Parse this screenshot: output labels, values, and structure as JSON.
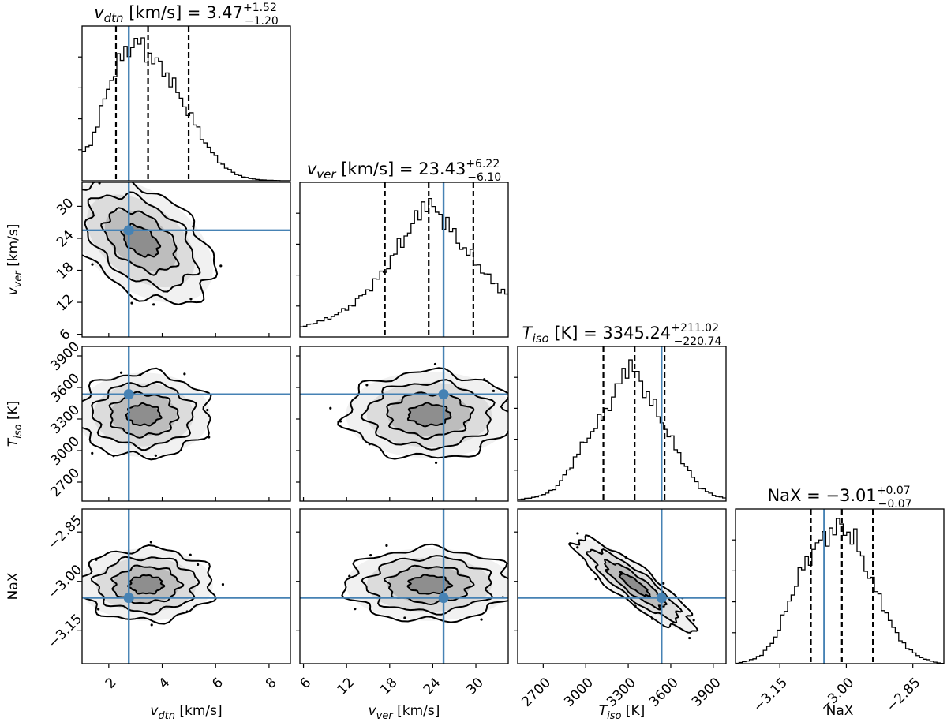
{
  "chart_data": {
    "type": "corner",
    "parameters": [
      {
        "key": "vdtn",
        "symbol": "v",
        "sub": "dtn",
        "unit": "[km/s]",
        "range": [
          1.0,
          8.8
        ],
        "ticks": [
          2,
          4,
          6,
          8
        ],
        "tick_labels": [
          "2",
          "4",
          "6",
          "8"
        ]
      },
      {
        "key": "vver",
        "symbol": "v",
        "sub": "ver",
        "unit": "[km/s]",
        "range": [
          5.5,
          34.5
        ],
        "ticks": [
          6,
          12,
          18,
          24,
          30
        ],
        "tick_labels": [
          "6",
          "12",
          "18",
          "24",
          "30"
        ]
      },
      {
        "key": "Tiso",
        "symbol": "T",
        "sub": "iso",
        "unit": "[K]",
        "range": [
          2520,
          3990
        ],
        "ticks": [
          2700,
          3000,
          3300,
          3600,
          3900
        ],
        "tick_labels": [
          "2700",
          "3000",
          "3300",
          "3600",
          "3900"
        ]
      },
      {
        "key": "NaX",
        "symbol": "NaX",
        "sub": "",
        "unit": "",
        "range": [
          -3.25,
          -2.78
        ],
        "ticks": [
          -3.15,
          -3.0,
          -2.85
        ],
        "tick_labels": [
          "−3.15",
          "−3.00",
          "−2.85"
        ]
      }
    ],
    "titles": [
      {
        "param": "vdtn",
        "lhs": "v",
        "sub": "dtn",
        "unit": " [km/s] = ",
        "median": "3.47",
        "plus": "+1.52",
        "minus": "−1.20"
      },
      {
        "param": "vver",
        "lhs": "v",
        "sub": "ver",
        "unit": " [km/s] = ",
        "median": "23.43",
        "plus": "+6.22",
        "minus": "−6.10"
      },
      {
        "param": "Tiso",
        "lhs": "T",
        "sub": "iso",
        "unit": " [K] = ",
        "median": "3345.24",
        "plus": "+211.02",
        "minus": "−220.74"
      },
      {
        "param": "NaX",
        "lhs": "NaX",
        "sub": "",
        "unit": " = ",
        "median": "−3.01",
        "plus": "+0.07",
        "minus": "−0.07"
      }
    ],
    "medians": [
      3.47,
      23.43,
      3345.24,
      -3.01
    ],
    "quantiles_16_84": [
      [
        2.27,
        4.99
      ],
      [
        17.33,
        29.65
      ],
      [
        3124.5,
        3556.26
      ],
      [
        -3.08,
        -2.94
      ]
    ],
    "truths": [
      2.75,
      25.5,
      3535,
      -3.05
    ],
    "marginals": [
      {
        "param": "vdtn",
        "x": [
          1.0,
          1.3,
          1.6,
          1.9,
          2.2,
          2.5,
          2.8,
          3.1,
          3.4,
          3.7,
          4.0,
          4.3,
          4.6,
          4.9,
          5.2,
          5.5,
          5.8,
          6.1,
          6.4,
          6.7,
          7.0,
          7.3,
          7.6,
          7.9,
          8.2,
          8.5
        ],
        "density": [
          0.18,
          0.25,
          0.4,
          0.6,
          0.75,
          0.85,
          0.93,
          0.95,
          0.9,
          0.82,
          0.78,
          0.7,
          0.6,
          0.5,
          0.4,
          0.3,
          0.21,
          0.14,
          0.09,
          0.05,
          0.03,
          0.015,
          0.008,
          0.004,
          0.002,
          0.0
        ]
      },
      {
        "param": "vver",
        "x": [
          5.5,
          7.0,
          8.5,
          10.0,
          11.5,
          13.0,
          14.5,
          16.0,
          17.5,
          19.0,
          20.5,
          22.0,
          23.0,
          24.0,
          25.5,
          27.0,
          28.5,
          30.0,
          31.5,
          33.0,
          34.5
        ],
        "density": [
          0.06,
          0.09,
          0.11,
          0.14,
          0.18,
          0.23,
          0.3,
          0.38,
          0.47,
          0.6,
          0.72,
          0.83,
          0.95,
          0.88,
          0.82,
          0.7,
          0.6,
          0.52,
          0.42,
          0.35,
          0.28
        ]
      },
      {
        "param": "Tiso",
        "x": [
          2520,
          2600,
          2700,
          2800,
          2900,
          3000,
          3100,
          3200,
          3300,
          3350,
          3400,
          3500,
          3600,
          3700,
          3800,
          3900,
          3990
        ],
        "density": [
          0.01,
          0.02,
          0.04,
          0.1,
          0.25,
          0.42,
          0.55,
          0.72,
          0.96,
          0.88,
          0.8,
          0.62,
          0.43,
          0.25,
          0.1,
          0.04,
          0.02
        ]
      },
      {
        "param": "NaX",
        "x": [
          -3.25,
          -3.22,
          -3.19,
          -3.16,
          -3.13,
          -3.1,
          -3.07,
          -3.04,
          -3.01,
          -2.98,
          -2.95,
          -2.92,
          -2.89,
          -2.86,
          -2.83,
          -2.8,
          -2.78
        ],
        "density": [
          0.0,
          0.02,
          0.06,
          0.18,
          0.42,
          0.65,
          0.8,
          0.9,
          0.95,
          0.85,
          0.62,
          0.42,
          0.22,
          0.1,
          0.04,
          0.01,
          0.0
        ]
      }
    ],
    "joint_contours": [
      {
        "x": "vdtn",
        "y": "vver",
        "center": [
          3.2,
          23.5
        ],
        "sigma": [
          1.35,
          5.8
        ],
        "rho": -0.45
      },
      {
        "x": "vdtn",
        "y": "Tiso",
        "center": [
          3.3,
          3340
        ],
        "sigma": [
          1.25,
          200
        ],
        "rho": 0.0
      },
      {
        "x": "vver",
        "y": "Tiso",
        "center": [
          23.5,
          3340
        ],
        "sigma": [
          5.8,
          205
        ],
        "rho": 0.0
      },
      {
        "x": "vdtn",
        "y": "NaX",
        "center": [
          3.4,
          -3.01
        ],
        "sigma": [
          1.25,
          0.055
        ],
        "rho": 0.0
      },
      {
        "x": "vver",
        "y": "NaX",
        "center": [
          23.5,
          -3.01
        ],
        "sigma": [
          5.8,
          0.055
        ],
        "rho": 0.0
      },
      {
        "x": "Tiso",
        "y": "NaX",
        "center": [
          3345,
          -3.01
        ],
        "sigma": [
          210,
          0.07
        ],
        "rho": -0.88
      }
    ],
    "contour_levels_sigma": [
      0.5,
      1.0,
      1.5,
      2.0
    ]
  }
}
